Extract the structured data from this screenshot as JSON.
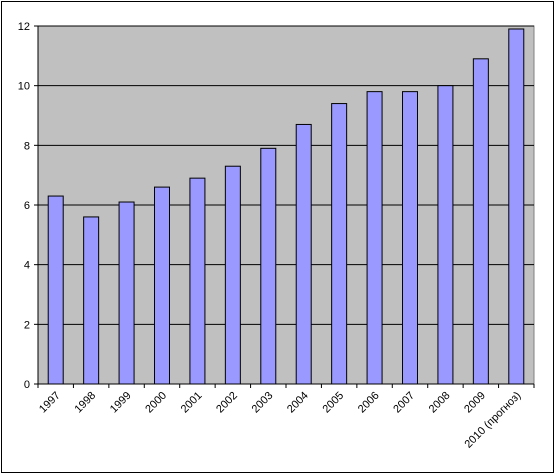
{
  "chart_data": {
    "type": "bar",
    "categories": [
      "1997",
      "1998",
      "1999",
      "2000",
      "2001",
      "2002",
      "2003",
      "2004",
      "2005",
      "2006",
      "2007",
      "2008",
      "2009",
      "2010 (прогноз)"
    ],
    "values": [
      6.3,
      5.6,
      6.1,
      6.6,
      6.9,
      7.3,
      7.9,
      8.7,
      9.4,
      9.8,
      9.8,
      10.0,
      10.9,
      11.9
    ],
    "title": "",
    "xlabel": "",
    "ylabel": "",
    "ylim": [
      0,
      12
    ],
    "yticks": [
      "0",
      "2",
      "4",
      "6",
      "8",
      "10",
      "12"
    ],
    "grid": true,
    "legend": "none",
    "colors": {
      "plot_background": "#c0c0c0",
      "bar_fill": "#9999ff",
      "bar_stroke": "#000000",
      "gridline": "#000000"
    }
  }
}
